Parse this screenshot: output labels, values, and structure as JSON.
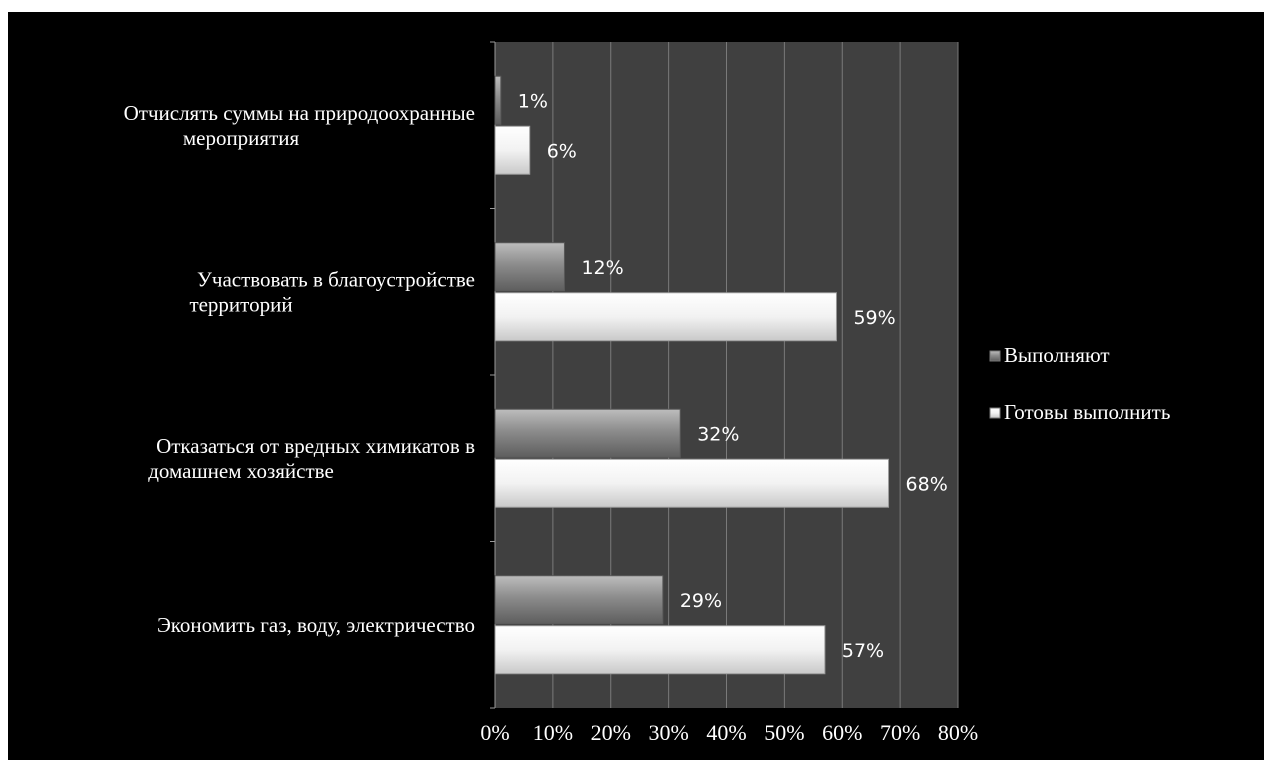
{
  "colors": {
    "background": "#000000",
    "plot_area": "#404040",
    "gridline": "#7a7a7a",
    "series_done": "#8c8c8c",
    "series_ready": "#f0f0f0",
    "text": "#ffffff"
  },
  "chart_data": {
    "type": "bar",
    "orientation": "horizontal",
    "categories": [
      [
        "Отчислять суммы на природоохранные",
        "мероприятия"
      ],
      [
        "Участвовать в благоустройстве",
        "территорий"
      ],
      [
        "Отказаться от вредных химикатов в",
        "домашнем хозяйстве"
      ],
      [
        "Экономить газ, воду, электричество"
      ]
    ],
    "series": [
      {
        "name": "Выполняют",
        "values": [
          1,
          12,
          32,
          29
        ],
        "labels": [
          "1%",
          "12%",
          "32%",
          "29%"
        ]
      },
      {
        "name": "Готовы выполнить",
        "values": [
          6,
          59,
          68,
          57
        ],
        "labels": [
          "6%",
          "59%",
          "68%",
          "57%"
        ]
      }
    ],
    "xlim": [
      0,
      80
    ],
    "xticks": [
      "0%",
      "10%",
      "20%",
      "30%",
      "40%",
      "50%",
      "60%",
      "70%",
      "80%"
    ],
    "grid": true,
    "legend": "right"
  }
}
